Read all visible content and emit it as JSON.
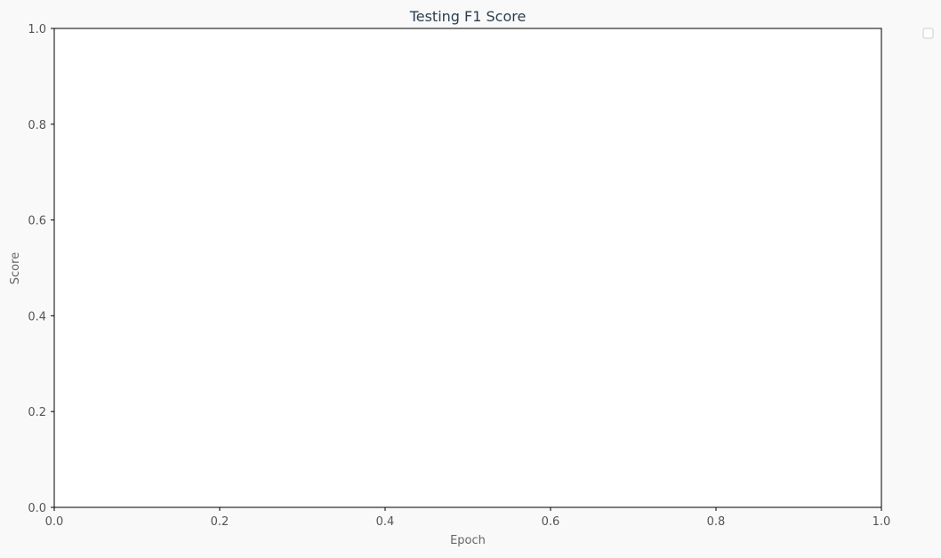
{
  "chart_data": {
    "type": "line",
    "title": "Testing F1 Score",
    "xlabel": "Epoch",
    "ylabel": "Score",
    "xlim": [
      0,
      1
    ],
    "ylim": [
      0,
      1
    ],
    "xticks": [
      "0.0",
      "0.2",
      "0.4",
      "0.6",
      "0.8",
      "1.0"
    ],
    "yticks": [
      "0.0",
      "0.2",
      "0.4",
      "0.6",
      "0.8",
      "1.0"
    ],
    "series": [],
    "grid": true,
    "legend_position": "outside-top-right",
    "colors": {
      "background": "#f9f9f9",
      "plot_background": "#ffffff",
      "title": "#2c3e50",
      "grid": "#ebebeb"
    }
  }
}
